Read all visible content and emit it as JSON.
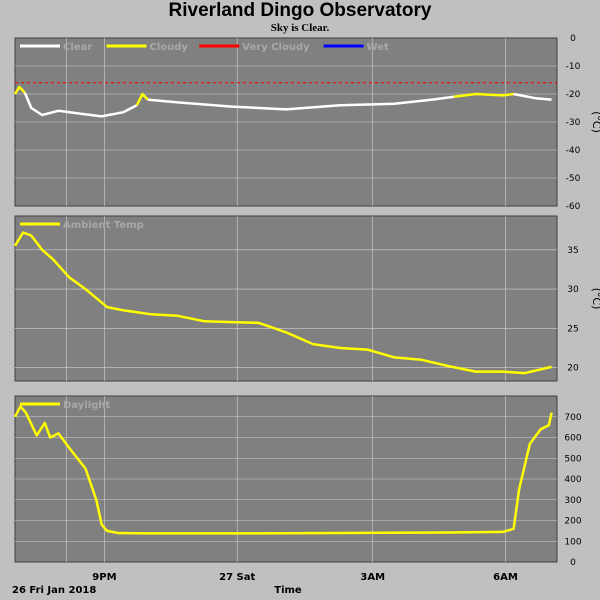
{
  "title": "Riverland Dingo Observatory",
  "subtitle": "Sky is Clear.",
  "colors": {
    "background": "#c0c0c0",
    "plot_bg": "#808080",
    "grid": "#d0d0d0"
  },
  "chart_data": [
    {
      "type": "line",
      "panel": "sky",
      "legend": [
        {
          "name": "Clear",
          "color": "#ffffff"
        },
        {
          "name": "Cloudy",
          "color": "#ffff00"
        },
        {
          "name": "Very Cloudy",
          "color": "#ff0000"
        },
        {
          "name": "Wet",
          "color": "#0000ff"
        }
      ],
      "legend_position": "top-left",
      "unit": "(°C)",
      "ylim": [
        -60,
        0
      ],
      "yticks": [
        0,
        -10,
        -20,
        -30,
        -40,
        -50,
        -60
      ],
      "threshold": -16,
      "segments": [
        {
          "color": "#ffff00",
          "x": [
            0,
            0.08,
            0.18
          ],
          "y": [
            -20,
            -17.5,
            -19.5
          ]
        },
        {
          "color": "#ffffff",
          "x": [
            0.18,
            0.3,
            0.5,
            0.8,
            1.2,
            1.6,
            2.0,
            2.25
          ],
          "y": [
            -19.5,
            -25,
            -27.5,
            -26,
            -27,
            -28,
            -26.5,
            -24
          ]
        },
        {
          "color": "#ffff00",
          "x": [
            2.25,
            2.35,
            2.45
          ],
          "y": [
            -24,
            -20,
            -22
          ]
        },
        {
          "color": "#ffffff",
          "x": [
            2.45,
            3.0,
            4.0,
            5.0,
            6.0,
            7.0,
            7.7,
            8.1
          ],
          "y": [
            -22,
            -23,
            -24.5,
            -25.5,
            -24,
            -23.5,
            -22,
            -21
          ]
        },
        {
          "color": "#ffff00",
          "x": [
            8.1,
            8.5,
            9.0,
            9.2
          ],
          "y": [
            -21,
            -20,
            -20.5,
            -20
          ]
        },
        {
          "color": "#ffffff",
          "x": [
            9.2,
            9.6,
            9.9
          ],
          "y": [
            -20,
            -21.5,
            -22
          ]
        }
      ]
    },
    {
      "type": "line",
      "panel": "temperature",
      "legend": [
        {
          "name": "Ambient Temp",
          "color": "#ffff00"
        }
      ],
      "legend_position": "top-left",
      "unit": "(°C)",
      "ylim": [
        18.3,
        39.3
      ],
      "yticks": [
        35,
        30,
        25,
        20
      ],
      "series": [
        {
          "name": "Ambient Temp",
          "color": "#ffff00",
          "x": [
            0,
            0.15,
            0.3,
            0.5,
            0.7,
            1.0,
            1.3,
            1.7,
            2.0,
            2.5,
            3.0,
            3.5,
            4.0,
            4.5,
            5.0,
            5.5,
            6.0,
            6.5,
            7.0,
            7.5,
            8.0,
            8.5,
            9.0,
            9.4,
            9.9
          ],
          "y": [
            35.5,
            37.2,
            36.8,
            35.0,
            33.8,
            31.5,
            30.0,
            27.7,
            27.3,
            26.8,
            26.6,
            25.9,
            25.8,
            25.7,
            24.5,
            23.0,
            22.5,
            22.3,
            21.3,
            21.0,
            20.2,
            19.5,
            19.5,
            19.3,
            20.1
          ]
        }
      ]
    },
    {
      "type": "line",
      "panel": "daylight",
      "legend": [
        {
          "name": "Daylight",
          "color": "#ffff00"
        }
      ],
      "legend_position": "top-left",
      "ylim": [
        0,
        800
      ],
      "yticks": [
        700,
        600,
        500,
        400,
        300,
        200,
        100,
        0
      ],
      "series": [
        {
          "name": "Daylight",
          "color": "#ffff00",
          "x": [
            0,
            0.1,
            0.2,
            0.4,
            0.55,
            0.65,
            0.8,
            1.0,
            1.3,
            1.5,
            1.6,
            1.7,
            1.9,
            2.5,
            4.0,
            6.0,
            8.0,
            9.0,
            9.2,
            9.3,
            9.5,
            9.7,
            9.85,
            9.9
          ],
          "y": [
            700,
            750,
            720,
            610,
            670,
            600,
            620,
            550,
            450,
            300,
            180,
            150,
            140,
            138,
            138,
            140,
            142,
            145,
            160,
            350,
            570,
            640,
            660,
            720
          ]
        }
      ],
      "x_ticks": [
        {
          "x": 1.9,
          "label": "9PM"
        },
        {
          "x": 4.85,
          "label": "27 Sat"
        },
        {
          "x": 7.9,
          "label": "3AM"
        },
        {
          "x": 10.95,
          "label": "6AM"
        }
      ],
      "x_gridlines": [
        1.1,
        1.9,
        4.85,
        7.9,
        10.95
      ],
      "xlabel": "Time",
      "date_label": "26 Fri Jan 2018",
      "xlim": [
        0,
        10.0
      ]
    }
  ]
}
